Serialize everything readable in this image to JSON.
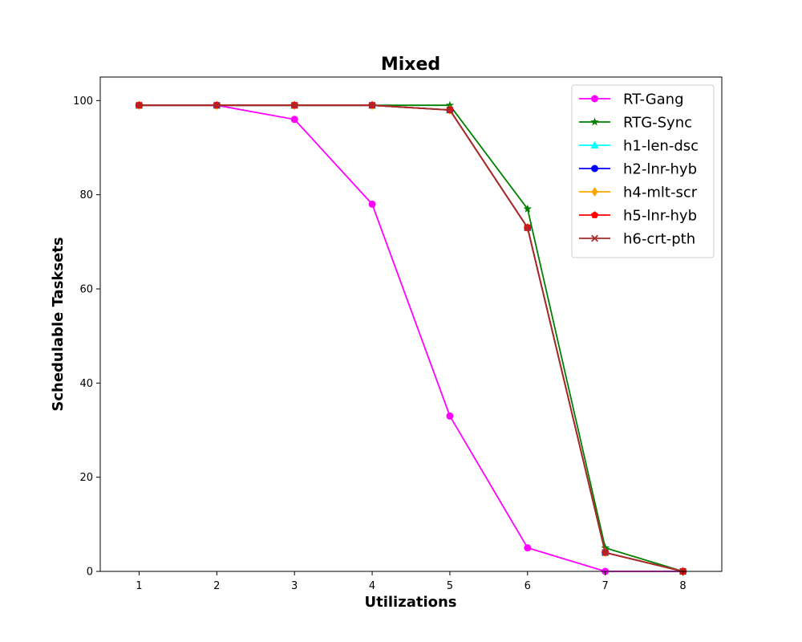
{
  "chart_data": {
    "type": "line",
    "title": "Mixed",
    "xlabel": "Utilizations",
    "ylabel": "Schedulable Tasksets",
    "x": [
      1,
      2,
      3,
      4,
      5,
      6,
      7,
      8
    ],
    "xlim": [
      0.5,
      8.5
    ],
    "ylim": [
      0,
      105
    ],
    "xticks": [
      "1",
      "2",
      "3",
      "4",
      "5",
      "6",
      "7",
      "8"
    ],
    "yticks": [
      "0",
      "20",
      "40",
      "60",
      "80",
      "100"
    ],
    "grid": false,
    "legend_position": "top-right",
    "series": [
      {
        "name": "RT-Gang",
        "color": "#ff00ff",
        "marker": "circle",
        "values": [
          99,
          99,
          96,
          78,
          33,
          5,
          0,
          0
        ]
      },
      {
        "name": "RTG-Sync",
        "color": "#008000",
        "marker": "star",
        "values": [
          99,
          99,
          99,
          99,
          99,
          77,
          5,
          0
        ]
      },
      {
        "name": "h1-len-dsc",
        "color": "#00ffff",
        "marker": "triangle",
        "values": [
          99,
          99,
          99,
          99,
          98,
          73,
          4,
          0
        ]
      },
      {
        "name": "h2-lnr-hyb",
        "color": "#0000ff",
        "marker": "circle",
        "values": [
          99,
          99,
          99,
          99,
          98,
          73,
          4,
          0
        ]
      },
      {
        "name": "h4-mlt-scr",
        "color": "#ffa500",
        "marker": "diamond",
        "values": [
          99,
          99,
          99,
          99,
          98,
          73,
          4,
          0
        ]
      },
      {
        "name": "h5-lnr-hyb",
        "color": "#ff0000",
        "marker": "pentagon",
        "values": [
          99,
          99,
          99,
          99,
          98,
          73,
          4,
          0
        ]
      },
      {
        "name": "h6-crt-pth",
        "color": "#a52a2a",
        "marker": "x",
        "values": [
          99,
          99,
          99,
          99,
          98,
          73,
          4,
          0
        ]
      }
    ]
  }
}
